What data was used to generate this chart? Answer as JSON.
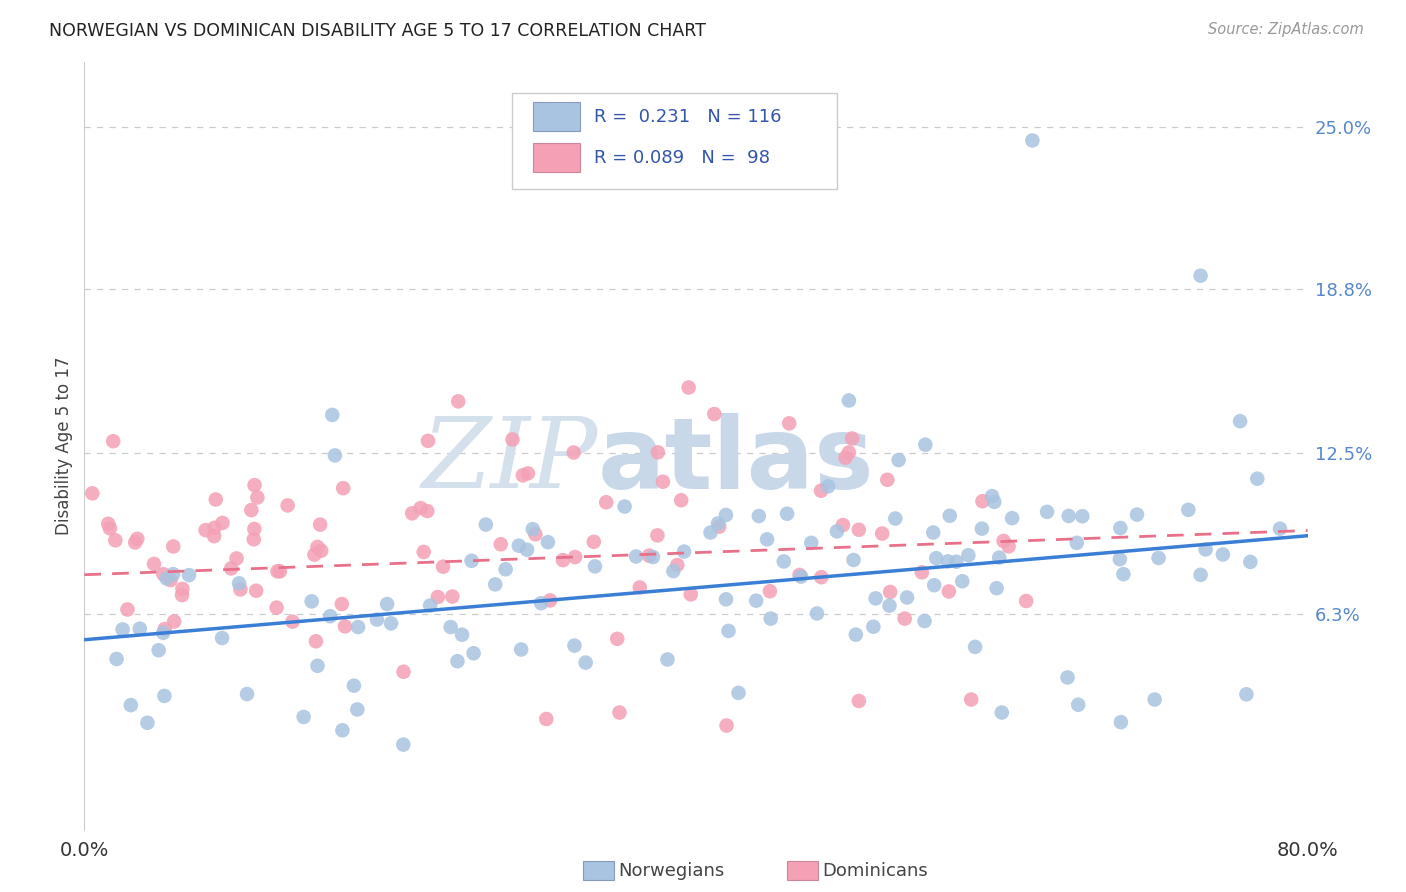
{
  "title": "NORWEGIAN VS DOMINICAN DISABILITY AGE 5 TO 17 CORRELATION CHART",
  "source": "Source: ZipAtlas.com",
  "ylabel": "Disability Age 5 to 17",
  "ytick_labels": [
    "6.3%",
    "12.5%",
    "18.8%",
    "25.0%"
  ],
  "ytick_values": [
    0.063,
    0.125,
    0.188,
    0.25
  ],
  "xmin": 0.0,
  "xmax": 0.8,
  "ymin": -0.02,
  "ymax": 0.275,
  "norwegian_color": "#a8c4e0",
  "dominican_color": "#f4a0b5",
  "norwegian_line_color": "#3a7fd5",
  "dominican_line_color": "#e8708a",
  "watermark_zip_color": "#ccd8e8",
  "watermark_atlas_color": "#c0cfe0",
  "grid_color": "#cccccc",
  "background_color": "#ffffff",
  "norwegians_label": "Norwegians",
  "dominicans_label": "Dominicans",
  "norwegian_R": 0.231,
  "norwegian_N": 116,
  "dominican_R": 0.089,
  "dominican_N": 98,
  "title_color": "#222222",
  "source_color": "#999999",
  "ylabel_color": "#444444",
  "ytick_color": "#5588cc",
  "xtick_color": "#333333",
  "legend_text_color": "#3355aa"
}
